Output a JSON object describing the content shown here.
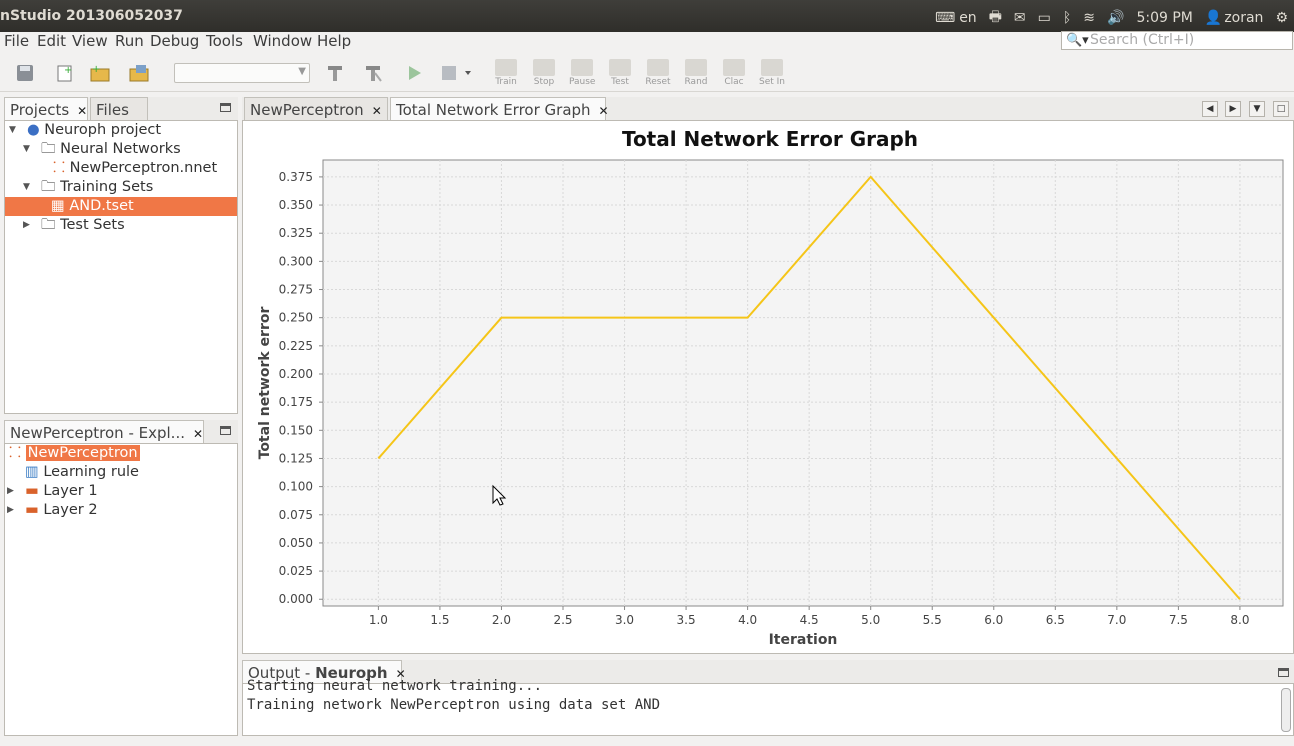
{
  "window": {
    "title": "nStudio 201306052037"
  },
  "tray": {
    "keyboard_lang": "en",
    "time": "5:09 PM",
    "user": "zoran"
  },
  "menu": [
    "File",
    "Edit",
    "View",
    "Run",
    "Debug",
    "Tools",
    "Window",
    "Help"
  ],
  "search": {
    "placeholder": "Search (Ctrl+I)"
  },
  "toolbar": {
    "labels": [
      "Train",
      "Stop",
      "Pause",
      "Test",
      "Reset",
      "Rand",
      "Clac",
      "Set In"
    ]
  },
  "projects_panel": {
    "tabs": [
      "Projects",
      "Files"
    ],
    "tree": [
      {
        "label": "Neuroph project"
      },
      {
        "label": "Neural Networks"
      },
      {
        "label": "NewPerceptron.nnet"
      },
      {
        "label": "Training Sets"
      },
      {
        "label": "AND.tset"
      },
      {
        "label": "Test Sets"
      }
    ]
  },
  "explorer_panel": {
    "title": "NewPerceptron - Expl...",
    "tree": [
      {
        "label": "NewPerceptron"
      },
      {
        "label": "Learning rule"
      },
      {
        "label": "Layer 1"
      },
      {
        "label": "Layer 2"
      }
    ]
  },
  "editor": {
    "tabs": [
      "NewPerceptron",
      "Total Network Error Graph"
    ]
  },
  "chart_data": {
    "type": "line",
    "title": "Total Network Error Graph",
    "xlabel": "Iteration",
    "ylabel": "Total network error",
    "x": [
      1,
      2,
      3,
      4,
      5,
      6,
      7,
      8
    ],
    "series": [
      {
        "values": [
          0.125,
          0.25,
          0.25,
          0.25,
          0.375,
          0.25,
          0.125,
          0.0
        ],
        "color": "#f5c518"
      }
    ],
    "xlim": [
      0.55,
      8.35
    ],
    "ylim": [
      -0.006,
      0.39
    ],
    "xticks": [
      "1.0",
      "1.5",
      "2.0",
      "2.5",
      "3.0",
      "3.5",
      "4.0",
      "4.5",
      "5.0",
      "5.5",
      "6.0",
      "6.5",
      "7.0",
      "7.5",
      "8.0"
    ],
    "yticks": [
      "0.000",
      "0.025",
      "0.050",
      "0.075",
      "0.100",
      "0.125",
      "0.150",
      "0.175",
      "0.200",
      "0.225",
      "0.250",
      "0.275",
      "0.300",
      "0.325",
      "0.350",
      "0.375"
    ],
    "grid": true,
    "legend": "none"
  },
  "output": {
    "tab_prefix": "Output - ",
    "tab_bold": "Neuroph",
    "lines": [
      "Starting neural network training...",
      "Training network NewPerceptron using data set AND"
    ]
  },
  "colors": {
    "selection": "#f07746",
    "series": "#f5c518",
    "topbar": "#3c3b37"
  }
}
